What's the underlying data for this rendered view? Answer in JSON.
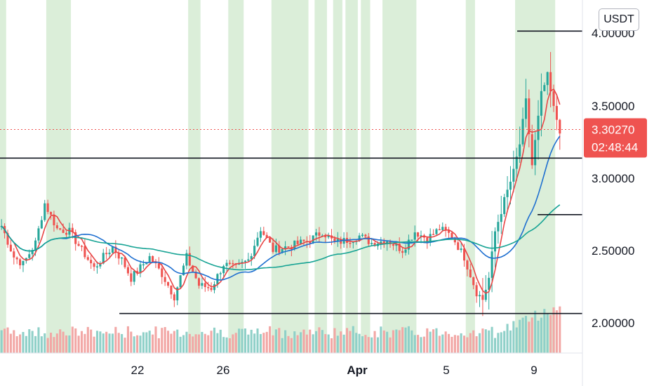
{
  "quote_unit": "USDT",
  "chart_data": {
    "type": "candlestick",
    "x_tick_labels": [
      "22",
      "26",
      "Apr",
      "5",
      "9"
    ],
    "y_tick_labels": [
      "2.00000",
      "2.50000",
      "3.00000",
      "3.50000",
      "4.00000"
    ],
    "ylim": [
      1.72,
      4.22
    ],
    "current_price": "3.30270",
    "countdown": "02:48:44",
    "horizontal_lines": [
      {
        "price": 2.0,
        "x_from": 0.205
      },
      {
        "price": 3.1,
        "x_from": 0.0
      },
      {
        "price": 2.7,
        "x_from": 0.923
      },
      {
        "price": 4.0,
        "x_from": 0.888
      }
    ],
    "key_points": [
      [
        0,
        2.62
      ],
      [
        4,
        2.4
      ],
      [
        7,
        2.35
      ],
      [
        11,
        2.5
      ],
      [
        14,
        2.78
      ],
      [
        18,
        2.6
      ],
      [
        22,
        2.58
      ],
      [
        26,
        2.45
      ],
      [
        30,
        2.32
      ],
      [
        33,
        2.4
      ],
      [
        36,
        2.47
      ],
      [
        39,
        2.38
      ],
      [
        42,
        2.25
      ],
      [
        46,
        2.35
      ],
      [
        48,
        2.4
      ],
      [
        52,
        2.28
      ],
      [
        56,
        2.12
      ],
      [
        60,
        2.4
      ],
      [
        64,
        2.2
      ],
      [
        68,
        2.18
      ],
      [
        72,
        2.35
      ],
      [
        76,
        2.32
      ],
      [
        80,
        2.38
      ],
      [
        84,
        2.6
      ],
      [
        88,
        2.45
      ],
      [
        94,
        2.48
      ],
      [
        100,
        2.52
      ],
      [
        104,
        2.58
      ],
      [
        108,
        2.5
      ],
      [
        112,
        2.52
      ],
      [
        116,
        2.55
      ],
      [
        120,
        2.5
      ],
      [
        125,
        2.52
      ],
      [
        130,
        2.45
      ],
      [
        134,
        2.58
      ],
      [
        138,
        2.53
      ],
      [
        142,
        2.6
      ],
      [
        146,
        2.55
      ],
      [
        150,
        2.4
      ],
      [
        154,
        2.15
      ],
      [
        156,
        2.1
      ],
      [
        158,
        2.25
      ],
      [
        160,
        2.58
      ],
      [
        163,
        2.8
      ],
      [
        166,
        3.0
      ],
      [
        168,
        3.2
      ],
      [
        170,
        3.5
      ],
      [
        172,
        3.05
      ],
      [
        175,
        3.55
      ],
      [
        177,
        3.68
      ],
      [
        179,
        3.45
      ],
      [
        181,
        3.3
      ]
    ],
    "volume_scale": [
      0.3,
      1.0
    ],
    "shaded_bands": [
      [
        0,
        1
      ],
      [
        15,
        22
      ],
      [
        61,
        64
      ],
      [
        74,
        78
      ],
      [
        88,
        99
      ],
      [
        102,
        105
      ],
      [
        108,
        110
      ],
      [
        112,
        115
      ],
      [
        117,
        119
      ],
      [
        124,
        134
      ],
      [
        151,
        153
      ],
      [
        167,
        179
      ]
    ],
    "series": [
      {
        "role": "fast-ma",
        "color": "#e84545"
      },
      {
        "role": "mid-ma",
        "color": "#1e6fd0"
      },
      {
        "role": "slow-ma",
        "color": "#16a394"
      }
    ],
    "colors": {
      "up": "#26a69a",
      "down": "#ef5350",
      "vol_up": "#8fd0c8",
      "vol_down": "#f2a7a5",
      "band": "#dbeed9",
      "price_tag": "#ef5350"
    }
  }
}
